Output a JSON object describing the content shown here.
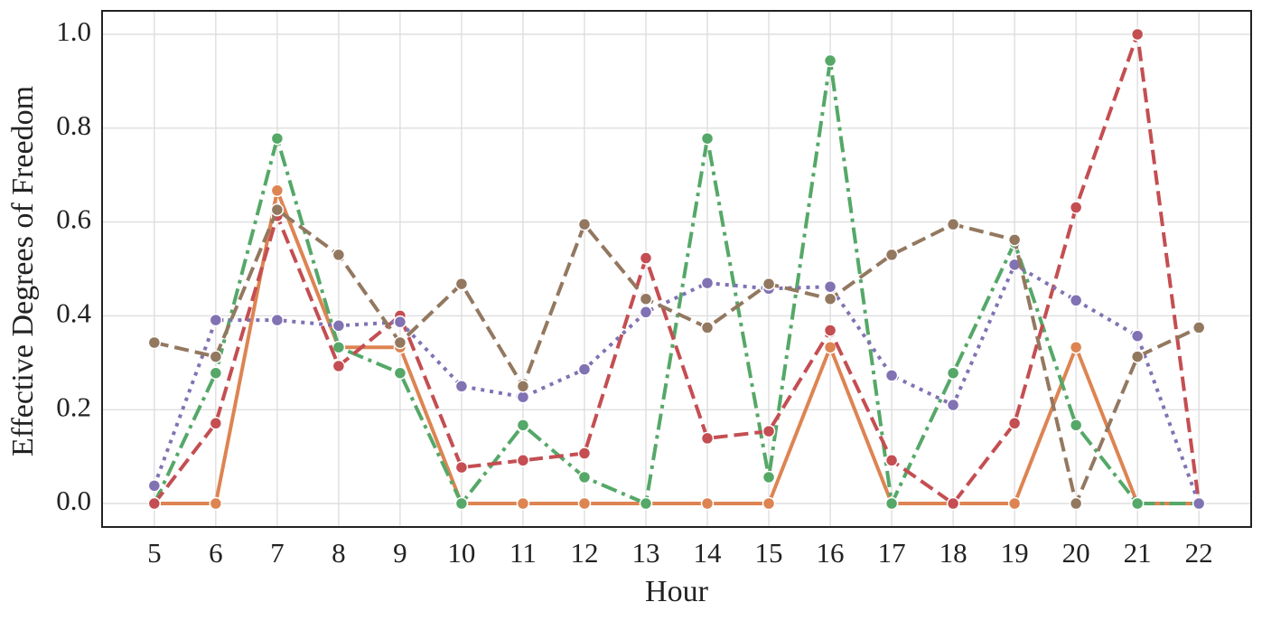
{
  "chart_data": {
    "type": "line",
    "xlabel": "Hour",
    "ylabel": "Effective Degrees of Freedom",
    "x": [
      5,
      6,
      7,
      8,
      9,
      10,
      11,
      12,
      13,
      14,
      15,
      16,
      17,
      18,
      19,
      20,
      21,
      22
    ],
    "xlim": [
      4.15,
      22.85
    ],
    "xticks": [
      5,
      6,
      7,
      8,
      9,
      10,
      11,
      12,
      13,
      14,
      15,
      16,
      17,
      18,
      19,
      20,
      21,
      22
    ],
    "ylim": [
      -0.05,
      1.05
    ],
    "yticks": [
      {
        "value": 0,
        "label": "0.0"
      },
      {
        "value": 0.2,
        "label": "0.2"
      },
      {
        "value": 0.4,
        "label": "0.4"
      },
      {
        "value": 0.6,
        "label": "0.6"
      },
      {
        "value": 0.8,
        "label": "0.8"
      },
      {
        "value": 1,
        "label": "1.0"
      }
    ],
    "grid": true,
    "series": [
      {
        "color": "#dd8452",
        "linestyle": "solid",
        "values": [
          0,
          0,
          0.667,
          0.333,
          0.333,
          0,
          0,
          0,
          0,
          0,
          0,
          0.333,
          0,
          0,
          0,
          0.333,
          0,
          0
        ]
      },
      {
        "color": "#55a868",
        "linestyle": "dashdot",
        "values": [
          0,
          0.278,
          0.778,
          0.333,
          0.278,
          0,
          0.167,
          0.056,
          0,
          0.778,
          0.056,
          0.944,
          0,
          0.278,
          0.556,
          0.167,
          0,
          0
        ]
      },
      {
        "color": "#c44e52",
        "linestyle": "dashed",
        "values": [
          0,
          0.171,
          0.613,
          0.293,
          0.4,
          0.077,
          0.092,
          0.107,
          0.523,
          0.139,
          0.154,
          0.369,
          0.092,
          0,
          0.171,
          0.631,
          1.0,
          0
        ]
      },
      {
        "color": "#8172b3",
        "linestyle": "dotted",
        "values": [
          0.038,
          0.391,
          0.391,
          0.379,
          0.387,
          0.25,
          0.227,
          0.286,
          0.408,
          0.47,
          0.458,
          0.462,
          0.273,
          0.21,
          0.509,
          0.433,
          0.357,
          0
        ]
      },
      {
        "color": "#937860",
        "linestyle": "dashed",
        "values": [
          0.343,
          0.313,
          0.626,
          0.53,
          0.343,
          0.468,
          0.25,
          0.595,
          0.436,
          0.375,
          0.468,
          0.436,
          0.53,
          0.595,
          0.562,
          0,
          0.313,
          0.375
        ]
      }
    ]
  }
}
